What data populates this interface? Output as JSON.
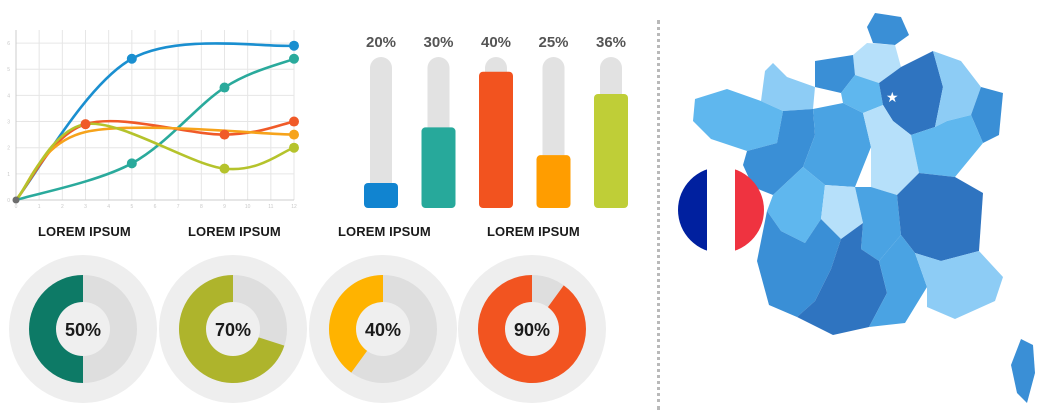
{
  "chart_data": [
    {
      "type": "line",
      "title": "",
      "xlabel": "",
      "ylabel": "",
      "x": [
        0,
        1,
        2,
        3,
        4,
        5,
        6,
        7,
        8,
        9,
        10,
        11,
        12
      ],
      "xticks": [
        "0",
        "1",
        "2",
        "3",
        "4",
        "5",
        "6",
        "7",
        "8",
        "9",
        "10",
        "11",
        "12"
      ],
      "yticks": [
        "0",
        "1",
        "2",
        "3",
        "4",
        "5",
        "6"
      ],
      "xlim": [
        0,
        12
      ],
      "ylim": [
        0,
        6.5
      ],
      "grid": true,
      "series": [
        {
          "color": "#1a8fd0",
          "points": [
            [
              0,
              0
            ],
            [
              5,
              5.4
            ],
            [
              12,
              5.9
            ]
          ],
          "markers": [
            5,
            12
          ]
        },
        {
          "color": "#2aaa9c",
          "points": [
            [
              0,
              0
            ],
            [
              5,
              1.4
            ],
            [
              9,
              4.3
            ],
            [
              12,
              5.4
            ]
          ],
          "markers": [
            5,
            9,
            12
          ]
        },
        {
          "color": "#f05a28",
          "points": [
            [
              0,
              0
            ],
            [
              3,
              2.9
            ],
            [
              9,
              2.5
            ],
            [
              12,
              3.0
            ]
          ],
          "markers": [
            3,
            9,
            12
          ]
        },
        {
          "color": "#f6a31b",
          "points": [
            [
              0,
              0
            ],
            [
              3,
              2.6
            ],
            [
              12,
              2.5
            ]
          ],
          "markers": [
            12
          ]
        },
        {
          "color": "#b5c32c",
          "points": [
            [
              0,
              0
            ],
            [
              3,
              2.9
            ],
            [
              9,
              1.2
            ],
            [
              12,
              2.0
            ]
          ],
          "markers": [
            9,
            12
          ]
        }
      ]
    },
    {
      "type": "bar",
      "title": "",
      "categories": [
        "20%",
        "30%",
        "40%",
        "25%",
        "36%"
      ],
      "values": [
        20,
        30,
        40,
        25,
        36
      ],
      "labels": [
        "20%",
        "30%",
        "40%",
        "25%",
        "36%"
      ],
      "colors": [
        "#1184d0",
        "#27a99b",
        "#f2531f",
        "#ff9d00",
        "#bfce37"
      ],
      "track_color": "#e2e2e2",
      "ylim": [
        0,
        40
      ]
    },
    {
      "type": "pie",
      "subtype": "donut",
      "title": "",
      "values": [
        50,
        70,
        40,
        90
      ],
      "labels": [
        "50%",
        "70%",
        "40%",
        "90%"
      ],
      "colors": [
        "#0d7a66",
        "#aeb42c",
        "#ffb300",
        "#f25420"
      ],
      "track_color": "#dedede",
      "outer_color": "#eeeeee"
    }
  ],
  "captions": [
    "LOREM IPSUM",
    "LOREM IPSUM",
    "LOREM IPSUM",
    "LOREM IPSUM"
  ],
  "map": {
    "flag_colors": [
      "#00209f",
      "#ffffff",
      "#ef3340"
    ],
    "palette": [
      "#2f74c0",
      "#3a8fd6",
      "#4aa3e3",
      "#5fb7ee",
      "#8dccf5",
      "#b6e0fa"
    ],
    "icon": "france-map-icon"
  }
}
